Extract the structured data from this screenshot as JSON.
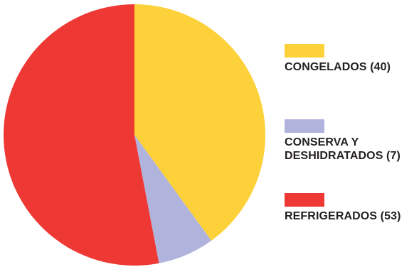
{
  "chart_data": {
    "type": "pie",
    "title": "",
    "slices": [
      {
        "label": "CONGELADOS (40)",
        "value": 40,
        "color": "#FDD13A"
      },
      {
        "label": "CONSERVA Y\nDESHIDRATADOS (7)",
        "value": 7,
        "color": "#B0B3DC"
      },
      {
        "label": "REFRIGERADOS (53)",
        "value": 53,
        "color": "#EE3833"
      }
    ],
    "legend_position": "right"
  }
}
